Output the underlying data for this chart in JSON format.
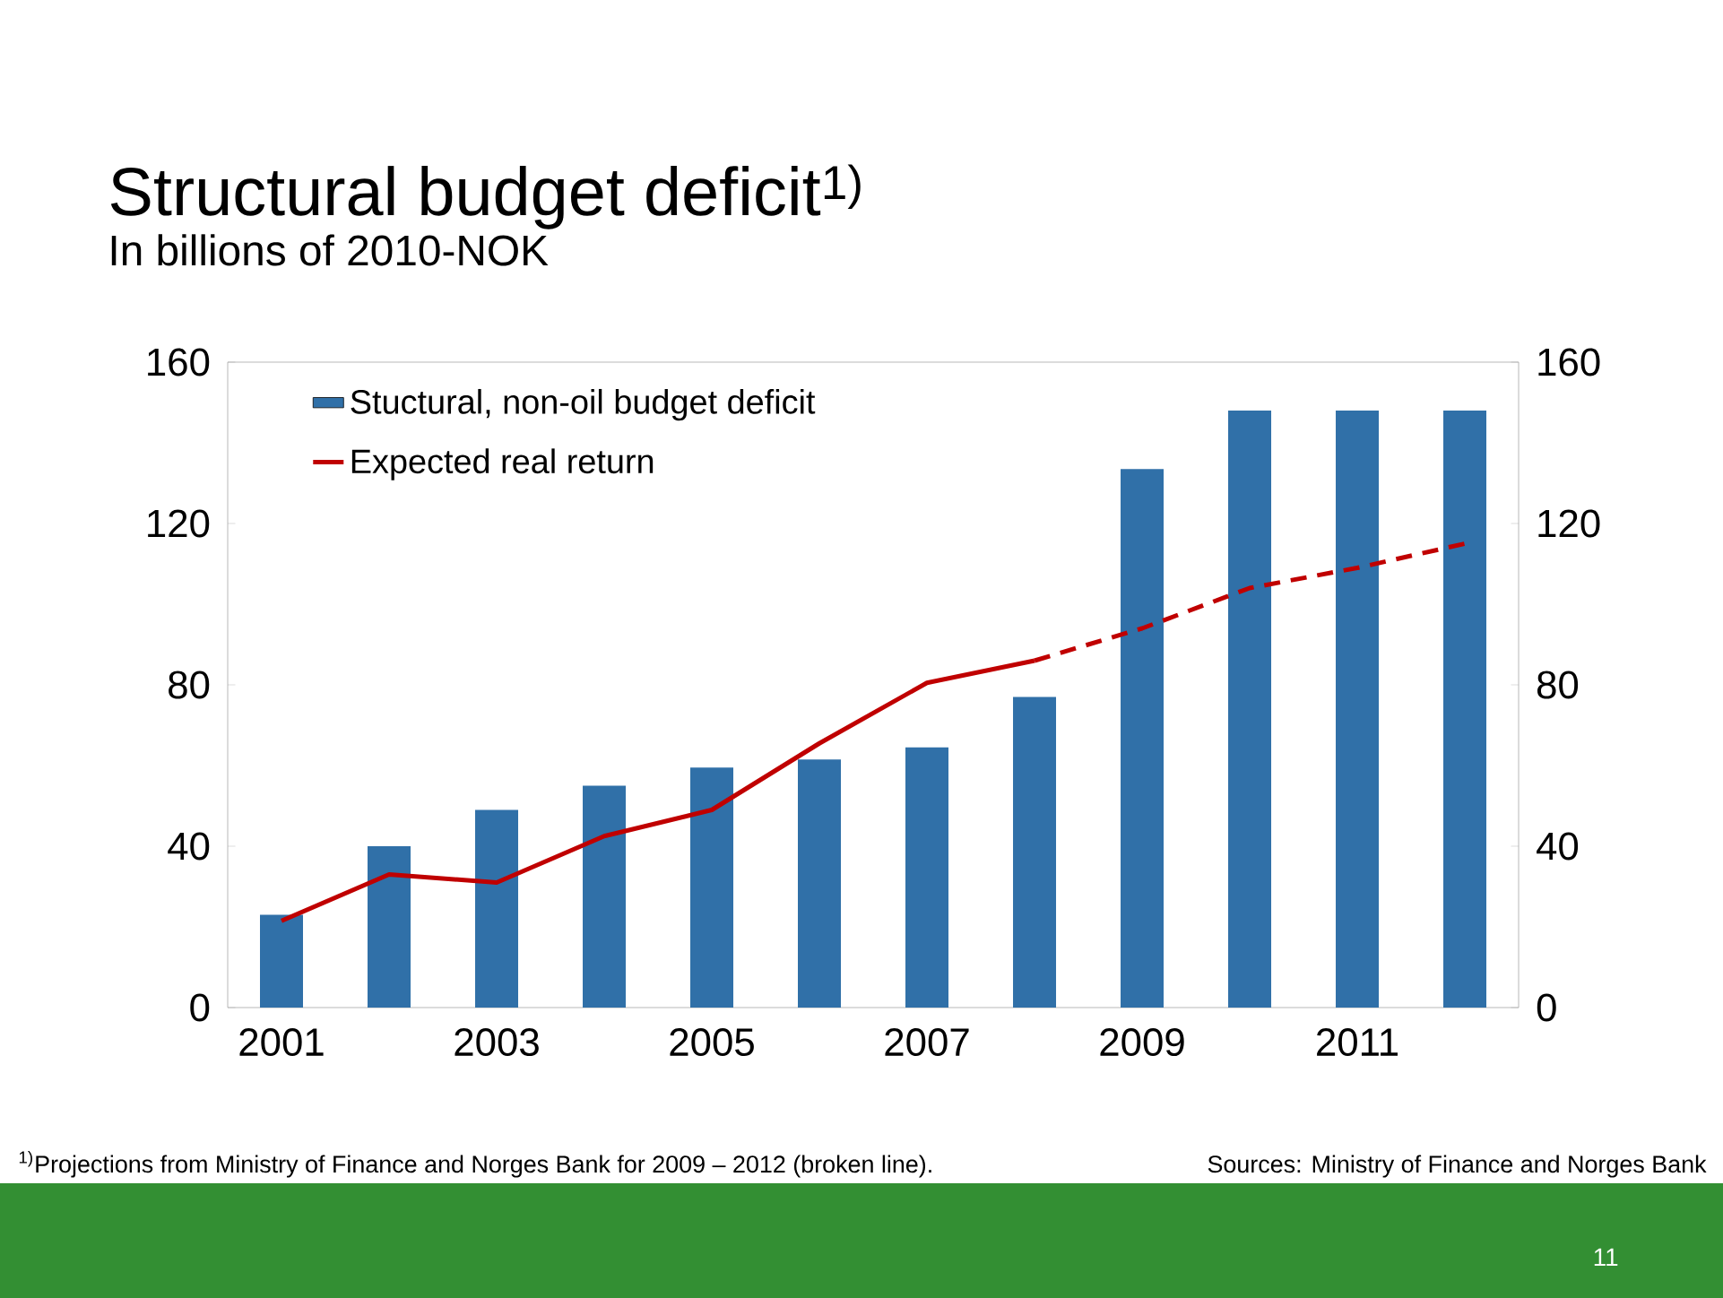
{
  "chart_data": {
    "type": "bar",
    "title": "Structural budget deficit$^{1)}$",
    "subtitle": "In billions of 2010-NOK",
    "categories": [
      "2001",
      null,
      "2003",
      null,
      "2005",
      null,
      "2007",
      null,
      "2009",
      null,
      "2011",
      null
    ],
    "series": [
      {
        "name": "Stuctural, non-oil budget deficit",
        "color": "#3070a8",
        "values": [
          23,
          40,
          49,
          55,
          59.5,
          61.5,
          64.5,
          77,
          133.5,
          148,
          148,
          148
        ]
      },
      {
        "name": "Expected real return",
        "type": "line",
        "color": "#c00000",
        "line_style": "solid",
        "values": [
          21.5,
          33,
          31,
          42.5,
          49,
          65.5,
          80.5,
          86,
          null,
          null,
          null,
          null
        ]
      },
      {
        "type": "line",
        "color": "#c00000",
        "line_style": "dashed",
        "values": [
          null,
          null,
          null,
          null,
          null,
          null,
          null,
          86,
          94,
          104,
          109,
          115
        ]
      }
    ],
    "ylim": [
      0,
      160
    ],
    "yticks": [
      0,
      40,
      80,
      120,
      160
    ],
    "y2lim": [
      0,
      160
    ],
    "y2ticks": [
      0,
      40,
      80,
      120,
      160
    ],
    "grid": false,
    "legend": "top left",
    "marker": "none",
    "annotations": [
      "$^{1)}$Projections from Ministry of Finance and Norges Bank for 2009 – 2012 (broken line).",
      "Sources: Ministry of Finance and Norges Bank",
      "11"
    ]
  }
}
